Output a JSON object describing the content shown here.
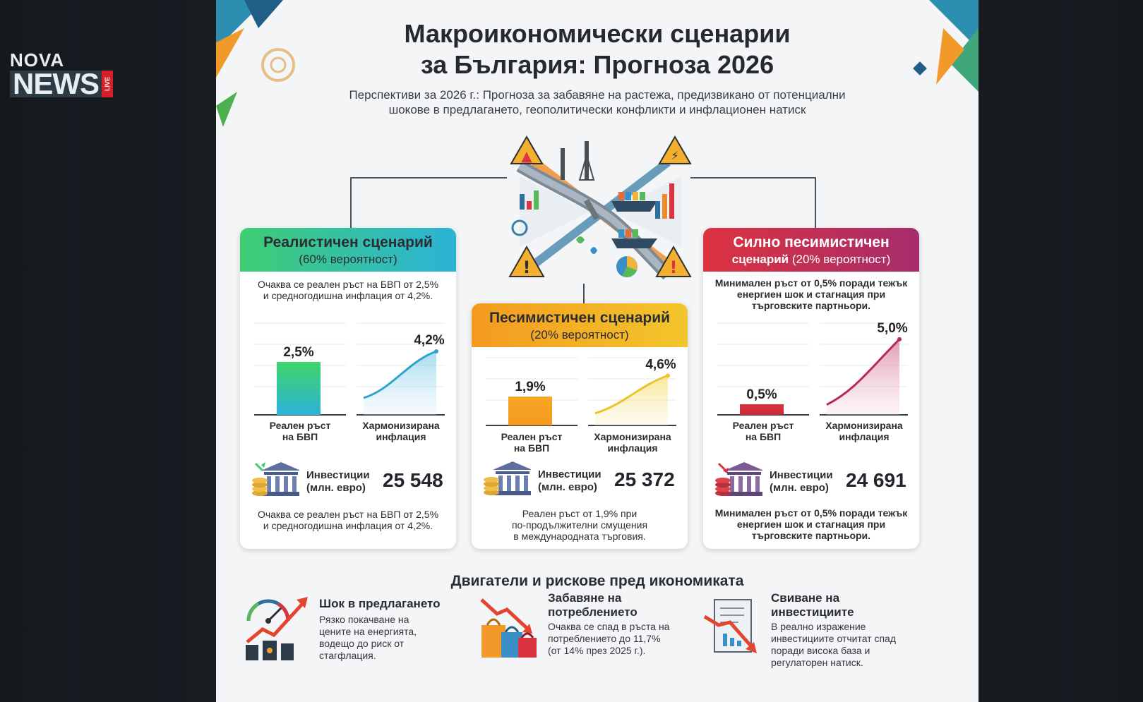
{
  "broadcast": {
    "logo_top": "NOVA",
    "logo_main": "NEWS",
    "logo_live": "LIVE"
  },
  "title_line1": "Макроикономически сценарии",
  "title_line2": "за България: Прогноза 2026",
  "subtitle_line1": "Перспективи за 2026 г.: Прогноза за забавяне на растежа, предизвикано от потенциални",
  "subtitle_line2": "шокове в предлагането, геополитически конфликти и инфлационен натиск",
  "colors": {
    "green": "#32c47a",
    "teal": "#2bb3d8",
    "orange": "#f4a11f",
    "yellow": "#f1cf2a",
    "red": "#d9343f",
    "magenta": "#b0306a"
  },
  "chart_data": [
    {
      "type": "bar",
      "scenario": "Реалистичен сценарий",
      "probability": "(60% вероятност)",
      "categories": [
        "Реален ръст на БВП",
        "Хармонизирана инфлация"
      ],
      "values": [
        2.5,
        4.2
      ],
      "value_labels": [
        "2,5%",
        "4,2%"
      ],
      "investments": "25 548"
    },
    {
      "type": "bar",
      "scenario": "Песимистичен сценарий",
      "probability": "(20% вероятност)",
      "categories": [
        "Реален ръст на БВП",
        "Хармонизирана инфлация"
      ],
      "values": [
        1.9,
        4.6
      ],
      "value_labels": [
        "1,9%",
        "4,6%"
      ],
      "investments": "25 372"
    },
    {
      "type": "bar",
      "scenario": "Силно песимистичен сценарий",
      "probability": "(20% вероятност)",
      "categories": [
        "Реален ръст на БВП",
        "Хармонизирана инфлация"
      ],
      "values": [
        0.5,
        5.0
      ],
      "value_labels": [
        "0,5%",
        "5,0%"
      ],
      "investments": "24 691"
    }
  ],
  "cards": {
    "realistic": {
      "title": "Реалистичен сценарий",
      "probability": "(60% вероятност)",
      "desc_top_1": "Очаква се реален ръст на БВП от 2,5%",
      "desc_top_2": "и средногодишна инфлация от 4,2%.",
      "gdp_label": "2,5%",
      "infl_label": "4,2%",
      "gdp_cat_1": "Реален ръст",
      "gdp_cat_2": "на БВП",
      "infl_cat_1": "Хармонизирана",
      "infl_cat_2": "инфлация",
      "invest_label_1": "Инвестиции",
      "invest_label_2": "(млн. евро)",
      "invest_value": "25 548",
      "desc_bottom_1": "Очаква се реален ръст на БВП от 2,5%",
      "desc_bottom_2": "и средногодишна инфлация от 4,2%."
    },
    "pessimistic": {
      "title": "Песимистичен сценарий",
      "probability": "(20% вероятност)",
      "gdp_label": "1,9%",
      "infl_label": "4,6%",
      "gdp_cat_1": "Реален ръст",
      "gdp_cat_2": "на БВП",
      "infl_cat_1": "Хармонизирана",
      "infl_cat_2": "инфлация",
      "invest_label_1": "Инвестиции",
      "invest_label_2": "(млн. евро)",
      "invest_value": "25 372",
      "desc_bottom_1": "Реален ръст от 1,9% при",
      "desc_bottom_2": "по-продължителни смущения",
      "desc_bottom_3": "в международната търговия."
    },
    "severe": {
      "title_1": "Силно песимистичен",
      "title_2": "сценарий",
      "probability": "(20% вероятност)",
      "desc_top_1": "Минимален ръст от 0,5% поради тежък",
      "desc_top_2": "енергиен шок и стагнация при",
      "desc_top_3": "търговските партньори.",
      "gdp_label": "0,5%",
      "infl_label": "5,0%",
      "gdp_cat_1": "Реален ръст",
      "gdp_cat_2": "на БВП",
      "infl_cat_1": "Хармонизирана",
      "infl_cat_2": "инфлация",
      "invest_label_1": "Инвестиции",
      "invest_label_2": "(млн. евро)",
      "invest_value": "24 691",
      "desc_bottom_1": "Минимален ръст от 0,5% поради тежък",
      "desc_bottom_2": "енергиен шок и стагнация при",
      "desc_bottom_3": "търговските партньори."
    }
  },
  "drivers": {
    "title": "Двигатели и рискове пред икономиката",
    "items": [
      {
        "title_1": "Шок в предлагането",
        "title_2": "",
        "desc": [
          "Рязко покачване на",
          "цените на енергията,",
          "водещо до риск от",
          "стагфлация."
        ]
      },
      {
        "title_1": "Забавяне на",
        "title_2": "потреблението",
        "desc": [
          "Очаква се спад в ръста на",
          "потреблението до 11,7%",
          "(от 14% през 2025 г.)."
        ]
      },
      {
        "title_1": "Свиване на",
        "title_2": "инвестициите",
        "desc": [
          "В реално изражение",
          "инвестициите отчитат спад",
          "поради висока база и",
          "регулаторен натиск."
        ]
      }
    ]
  }
}
